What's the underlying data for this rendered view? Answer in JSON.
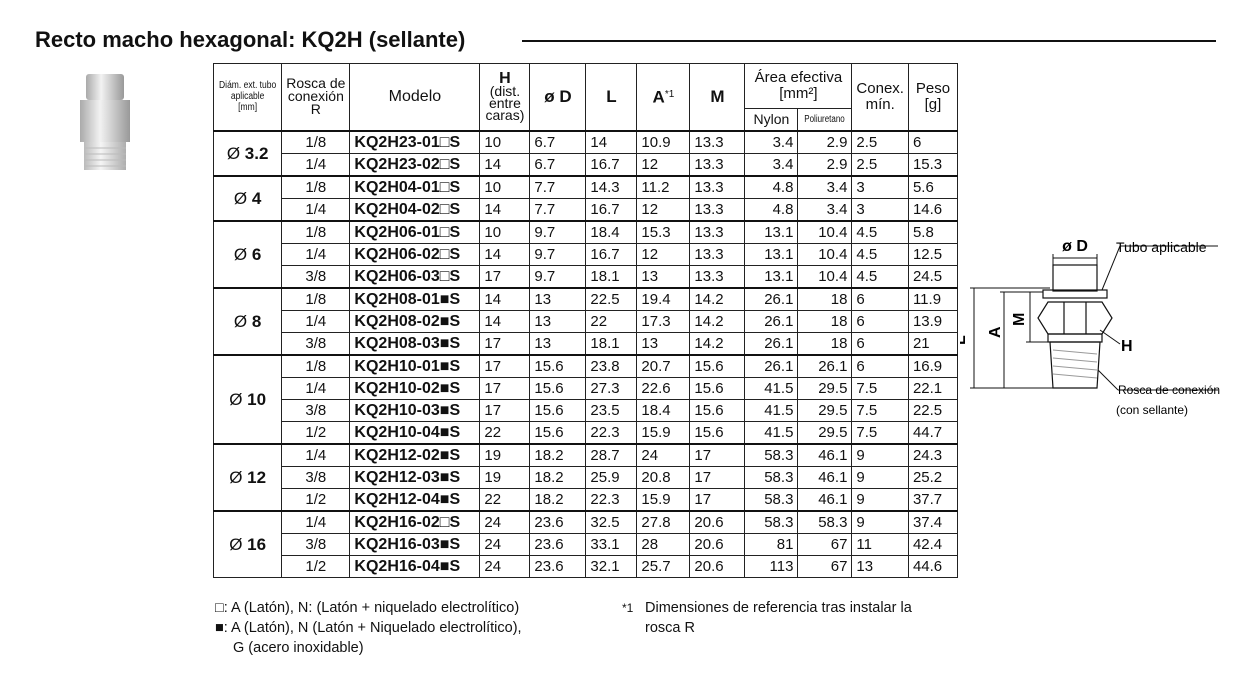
{
  "title": "Recto macho hexagonal: KQ2H (sellante)",
  "table": {
    "headers": {
      "tube": [
        "Diám. ext. tubo",
        "aplicable",
        "[mm]"
      ],
      "thread": [
        "Rosca de",
        "conexión",
        "R"
      ],
      "model": "Modelo",
      "h": [
        "H",
        "(dist.",
        "entre",
        "caras)"
      ],
      "d": "ø D",
      "l": "L",
      "a": "A",
      "a_note": "*1",
      "m": "M",
      "area": [
        "Área efectiva",
        "[mm²]"
      ],
      "nylon": "Nylon",
      "poly": "Poliuretano",
      "conex": [
        "Conex.",
        "mín."
      ],
      "peso": [
        "Peso",
        "[g]"
      ]
    },
    "diameter_symbol": "Ø",
    "groups": [
      {
        "size": "3.2",
        "rows": [
          [
            "1/8",
            "KQ2H23-01□S",
            10,
            6.7,
            14,
            10.9,
            13.3,
            3.4,
            2.9,
            2.5,
            6
          ],
          [
            "1/4",
            "KQ2H23-02□S",
            14,
            6.7,
            16.7,
            12,
            13.3,
            3.4,
            2.9,
            2.5,
            15.3
          ]
        ]
      },
      {
        "size": "4",
        "rows": [
          [
            "1/8",
            "KQ2H04-01□S",
            10,
            7.7,
            14.3,
            11.2,
            13.3,
            4.8,
            3.4,
            3,
            5.6
          ],
          [
            "1/4",
            "KQ2H04-02□S",
            14,
            7.7,
            16.7,
            12,
            13.3,
            4.8,
            3.4,
            3,
            14.6
          ]
        ]
      },
      {
        "size": "6",
        "rows": [
          [
            "1/8",
            "KQ2H06-01□S",
            10,
            9.7,
            18.4,
            15.3,
            13.3,
            13.1,
            10.4,
            4.5,
            5.8
          ],
          [
            "1/4",
            "KQ2H06-02□S",
            14,
            9.7,
            16.7,
            12,
            13.3,
            13.1,
            10.4,
            4.5,
            12.5
          ],
          [
            "3/8",
            "KQ2H06-03□S",
            17,
            9.7,
            18.1,
            13,
            13.3,
            13.1,
            10.4,
            4.5,
            24.5
          ]
        ]
      },
      {
        "size": "8",
        "rows": [
          [
            "1/8",
            "KQ2H08-01■S",
            14,
            13,
            22.5,
            19.4,
            14.2,
            26.1,
            18,
            6,
            11.9
          ],
          [
            "1/4",
            "KQ2H08-02■S",
            14,
            13,
            22,
            17.3,
            14.2,
            26.1,
            18,
            6,
            13.9
          ],
          [
            "3/8",
            "KQ2H08-03■S",
            17,
            13,
            18.1,
            13,
            14.2,
            26.1,
            18,
            6,
            21
          ]
        ]
      },
      {
        "size": "10",
        "rows": [
          [
            "1/8",
            "KQ2H10-01■S",
            17,
            15.6,
            23.8,
            20.7,
            15.6,
            26.1,
            26.1,
            6,
            16.9
          ],
          [
            "1/4",
            "KQ2H10-02■S",
            17,
            15.6,
            27.3,
            22.6,
            15.6,
            41.5,
            29.5,
            7.5,
            22.1
          ],
          [
            "3/8",
            "KQ2H10-03■S",
            17,
            15.6,
            23.5,
            18.4,
            15.6,
            41.5,
            29.5,
            7.5,
            22.5
          ],
          [
            "1/2",
            "KQ2H10-04■S",
            22,
            15.6,
            22.3,
            15.9,
            15.6,
            41.5,
            29.5,
            7.5,
            44.7
          ]
        ]
      },
      {
        "size": "12",
        "rows": [
          [
            "1/4",
            "KQ2H12-02■S",
            19,
            18.2,
            28.7,
            24,
            17,
            58.3,
            46.1,
            9,
            24.3
          ],
          [
            "3/8",
            "KQ2H12-03■S",
            19,
            18.2,
            25.9,
            20.8,
            17,
            58.3,
            46.1,
            9,
            25.2
          ],
          [
            "1/2",
            "KQ2H12-04■S",
            22,
            18.2,
            22.3,
            15.9,
            17,
            58.3,
            46.1,
            9,
            37.7
          ]
        ]
      },
      {
        "size": "16",
        "rows": [
          [
            "1/4",
            "KQ2H16-02□S",
            24,
            23.6,
            32.5,
            27.8,
            20.6,
            58.3,
            58.3,
            9,
            37.4
          ],
          [
            "3/8",
            "KQ2H16-03■S",
            24,
            23.6,
            33.1,
            28,
            20.6,
            81,
            67,
            11,
            42.4
          ],
          [
            "1/2",
            "KQ2H16-04■S",
            24,
            23.6,
            32.1,
            25.7,
            20.6,
            113,
            67,
            13,
            44.6
          ]
        ]
      }
    ]
  },
  "notes": {
    "open": "□: A (Latón), N: (Latón + niquelado electrolítico)",
    "filled": [
      "■: A (Latón), N (Latón + Niquelado electrolítico),",
      "G (acero inoxidable)"
    ],
    "ref_mark": "*1",
    "ref": [
      "Dimensiones de referencia tras instalar la",
      "rosca R"
    ]
  },
  "diagram": {
    "d": "ø D",
    "tube": "Tubo aplicable",
    "l": "L",
    "a": "A",
    "m": "M",
    "h": "H",
    "thread": "Rosca de conexión",
    "sealant": "(con sellante)"
  }
}
